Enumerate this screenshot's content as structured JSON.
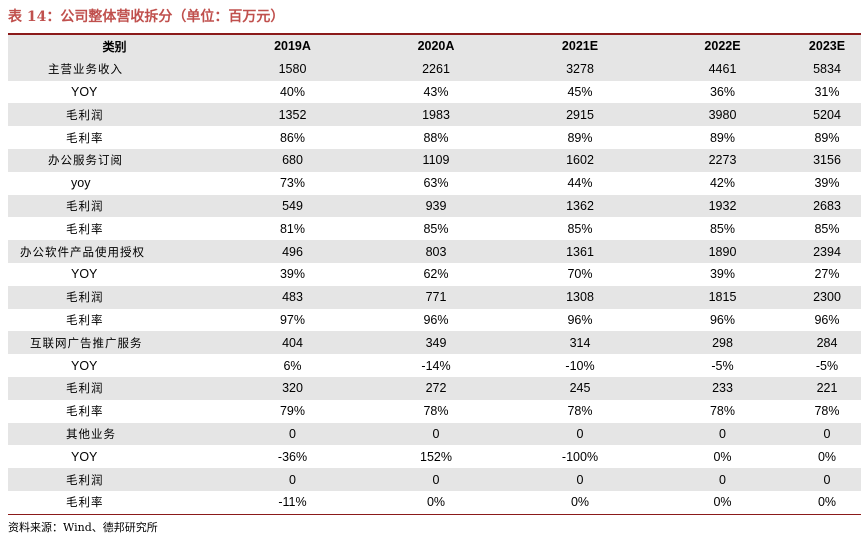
{
  "title": "表 14：公司整体营收拆分（单位：百万元）",
  "source": "资料来源：Wind、德邦研究所",
  "table": {
    "headers": [
      "类别",
      "2019A",
      "2020A",
      "2021E",
      "2022E",
      "2023E"
    ],
    "rows": [
      [
        "主营业务收入",
        "1580",
        "2261",
        "3278",
        "4461",
        "5834"
      ],
      [
        "YOY",
        "40%",
        "43%",
        "45%",
        "36%",
        "31%"
      ],
      [
        "毛利润",
        "1352",
        "1983",
        "2915",
        "3980",
        "5204"
      ],
      [
        "毛利率",
        "86%",
        "88%",
        "89%",
        "89%",
        "89%"
      ],
      [
        "办公服务订阅",
        "680",
        "1109",
        "1602",
        "2273",
        "3156"
      ],
      [
        "yoy",
        "73%",
        "63%",
        "44%",
        "42%",
        "39%"
      ],
      [
        "毛利润",
        "549",
        "939",
        "1362",
        "1932",
        "2683"
      ],
      [
        "毛利率",
        "81%",
        "85%",
        "85%",
        "85%",
        "85%"
      ],
      [
        "办公软件产品使用授权",
        "496",
        "803",
        "1361",
        "1890",
        "2394"
      ],
      [
        "YOY",
        "39%",
        "62%",
        "70%",
        "39%",
        "27%"
      ],
      [
        "毛利润",
        "483",
        "771",
        "1308",
        "1815",
        "2300"
      ],
      [
        "毛利率",
        "97%",
        "96%",
        "96%",
        "96%",
        "96%"
      ],
      [
        "互联网广告推广服务",
        "404",
        "349",
        "314",
        "298",
        "284"
      ],
      [
        "YOY",
        "6%",
        "-14%",
        "-10%",
        "-5%",
        "-5%"
      ],
      [
        "毛利润",
        "320",
        "272",
        "245",
        "233",
        "221"
      ],
      [
        "毛利率",
        "79%",
        "78%",
        "78%",
        "78%",
        "78%"
      ],
      [
        "其他业务",
        "0",
        "0",
        "0",
        "0",
        "0"
      ],
      [
        "YOY",
        "-36%",
        "152%",
        "-100%",
        "0%",
        "0%"
      ],
      [
        "毛利润",
        "0",
        "0",
        "0",
        "0",
        "0"
      ],
      [
        "毛利率",
        "-11%",
        "0%",
        "0%",
        "0%",
        "0%"
      ]
    ]
  }
}
